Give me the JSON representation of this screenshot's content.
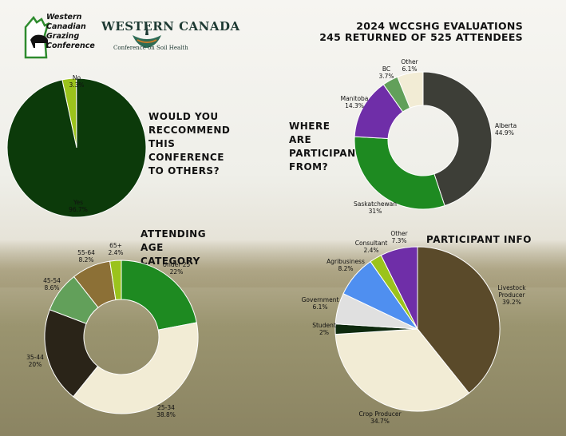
{
  "header": {
    "line1": "2024 WCCSHG EVALUATIONS",
    "line2": "245 RETURNED OF 525 ATTENDEES"
  },
  "logos": {
    "wcgc_text": "Western\nCanadian\nGrazing\nConference",
    "wccsh_title": "WESTERN CANADA",
    "wccsh_subtitle": "Conference on Soil Health"
  },
  "colors": {
    "dark_green": "#0c3a0a",
    "lime": "#9bc31c",
    "charcoal": "#3d3e37",
    "green": "#1e8a21",
    "purple": "#6f2ea8",
    "sage": "#62a05a",
    "cream": "#f2ecd5",
    "dark_brown": "#2a2418",
    "brown": "#8c7036",
    "olive_brown": "#5a4a2a",
    "blue": "#4f8ff0",
    "light_grey": "#e0e0e0",
    "very_dark_green": "#0e2a0e"
  },
  "chart_data": [
    {
      "type": "pie",
      "title": "WOULD YOU RECCOMMEND THIS CONFERENCE TO OTHERS?",
      "slices": [
        {
          "label": "No",
          "value": 3.3,
          "display": "3.3%",
          "color": "#9bc31c"
        },
        {
          "label": "Yes",
          "value": 96.7,
          "display": "96.7%",
          "color": "#0c3a0a"
        }
      ]
    },
    {
      "type": "pie",
      "subtype": "donut",
      "title": "WHERE ARE PARTICIPANTS FROM?",
      "slices": [
        {
          "label": "Alberta",
          "value": 44.9,
          "display": "44.9%",
          "color": "#3d3e37"
        },
        {
          "label": "Saskatchewan",
          "value": 31,
          "display": "31%",
          "color": "#1e8a21"
        },
        {
          "label": "Manitoba",
          "value": 14.3,
          "display": "14.3%",
          "color": "#6f2ea8"
        },
        {
          "label": "BC",
          "value": 3.7,
          "display": "3.7%",
          "color": "#62a05a"
        },
        {
          "label": "Other",
          "value": 6.1,
          "display": "6.1%",
          "color": "#f2ecd5"
        }
      ]
    },
    {
      "type": "pie",
      "subtype": "donut",
      "title": "ATTENDING AGE CATEGORY",
      "slices": [
        {
          "label": "Under 25",
          "value": 22,
          "display": "22%",
          "color": "#1e8a21"
        },
        {
          "label": "25-34",
          "value": 38.8,
          "display": "38.8%",
          "color": "#f2ecd5"
        },
        {
          "label": "35-44",
          "value": 20,
          "display": "20%",
          "color": "#2a2418"
        },
        {
          "label": "45-54",
          "value": 8.6,
          "display": "8.6%",
          "color": "#62a05a"
        },
        {
          "label": "55-64",
          "value": 8.2,
          "display": "8.2%",
          "color": "#8c7036"
        },
        {
          "label": "65+",
          "value": 2.4,
          "display": "2.4%",
          "color": "#9bc31c"
        }
      ]
    },
    {
      "type": "pie",
      "title": "PARTICIPANT INFO",
      "slices": [
        {
          "label": "Livestock Producer",
          "value": 39.2,
          "display": "39.2%",
          "color": "#5a4a2a"
        },
        {
          "label": "Crop Producer",
          "value": 34.7,
          "display": "34.7%",
          "color": "#f2ecd5"
        },
        {
          "label": "Student",
          "value": 2,
          "display": "2%",
          "color": "#0e2a0e"
        },
        {
          "label": "Government",
          "value": 6.1,
          "display": "6.1%",
          "color": "#e0e0e0"
        },
        {
          "label": "Agribusiness",
          "value": 8.2,
          "display": "8.2%",
          "color": "#4f8ff0"
        },
        {
          "label": "Consultant",
          "value": 2.4,
          "display": "2.4%",
          "color": "#9bc31c"
        },
        {
          "label": "Other",
          "value": 7.3,
          "display": "7.3%",
          "color": "#6f2ea8"
        }
      ]
    }
  ]
}
